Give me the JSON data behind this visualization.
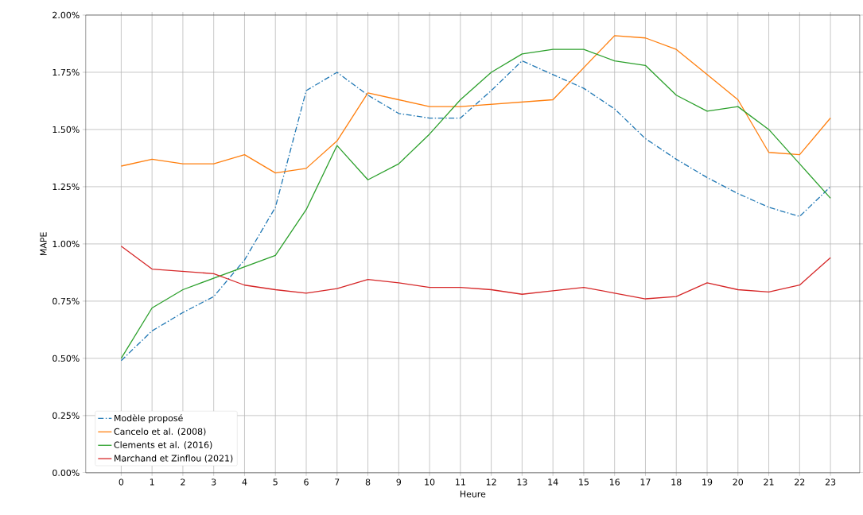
{
  "chart_data": {
    "type": "line",
    "xlabel": "Heure",
    "ylabel": "MAPE",
    "x": [
      0,
      1,
      2,
      3,
      4,
      5,
      6,
      7,
      8,
      9,
      10,
      11,
      12,
      13,
      14,
      15,
      16,
      17,
      18,
      19,
      20,
      21,
      22,
      23
    ],
    "xlim": [
      -1.15,
      23.95
    ],
    "xticks": [
      0,
      1,
      2,
      3,
      4,
      5,
      6,
      7,
      8,
      9,
      10,
      11,
      12,
      13,
      14,
      15,
      16,
      17,
      18,
      19,
      20,
      21,
      22,
      23
    ],
    "ylim": [
      0,
      2.0
    ],
    "yticks": [
      {
        "value": 0,
        "label": "0.00%"
      },
      {
        "value": 0.25,
        "label": "0.25%"
      },
      {
        "value": 0.5,
        "label": "0.50%"
      },
      {
        "value": 0.75,
        "label": "0.75%"
      },
      {
        "value": 1.0,
        "label": "1.00%"
      },
      {
        "value": 1.25,
        "label": "1.25%"
      },
      {
        "value": 1.5,
        "label": "1.50%"
      },
      {
        "value": 1.75,
        "label": "1.75%"
      },
      {
        "value": 2.0,
        "label": "2.00%"
      }
    ],
    "grid": true,
    "legend": "bottom left",
    "series": [
      {
        "name": "Modèle proposé",
        "color": "#1f77b4",
        "line_style": "dashdot",
        "values": [
          0.49,
          0.62,
          0.7,
          0.77,
          0.93,
          1.16,
          1.67,
          1.75,
          1.65,
          1.57,
          1.55,
          1.55,
          1.67,
          1.8,
          1.74,
          1.68,
          1.59,
          1.46,
          1.37,
          1.29,
          1.22,
          1.16,
          1.12,
          1.25
        ]
      },
      {
        "name": "Cancelo et al. (2008)",
        "color": "#ff7f0e",
        "line_style": "solid",
        "values": [
          1.34,
          1.37,
          1.35,
          1.35,
          1.39,
          1.31,
          1.33,
          1.45,
          1.66,
          1.63,
          1.6,
          1.6,
          1.61,
          1.62,
          1.63,
          1.77,
          1.91,
          1.9,
          1.85,
          1.74,
          1.63,
          1.4,
          1.39,
          1.55
        ]
      },
      {
        "name": "Clements et al. (2016)",
        "color": "#2ca02c",
        "line_style": "solid",
        "values": [
          0.5,
          0.72,
          0.8,
          0.85,
          0.9,
          0.95,
          1.15,
          1.43,
          1.28,
          1.35,
          1.48,
          1.63,
          1.75,
          1.83,
          1.85,
          1.85,
          1.8,
          1.78,
          1.65,
          1.58,
          1.6,
          1.5,
          1.35,
          1.2
        ]
      },
      {
        "name": "Marchand et Zinflou (2021)",
        "color": "#d62728",
        "line_style": "solid",
        "values": [
          0.99,
          0.89,
          0.88,
          0.87,
          0.82,
          0.8,
          0.785,
          0.805,
          0.845,
          0.83,
          0.81,
          0.81,
          0.8,
          0.78,
          0.795,
          0.81,
          0.785,
          0.76,
          0.77,
          0.83,
          0.8,
          0.79,
          0.82,
          0.94
        ]
      }
    ]
  }
}
